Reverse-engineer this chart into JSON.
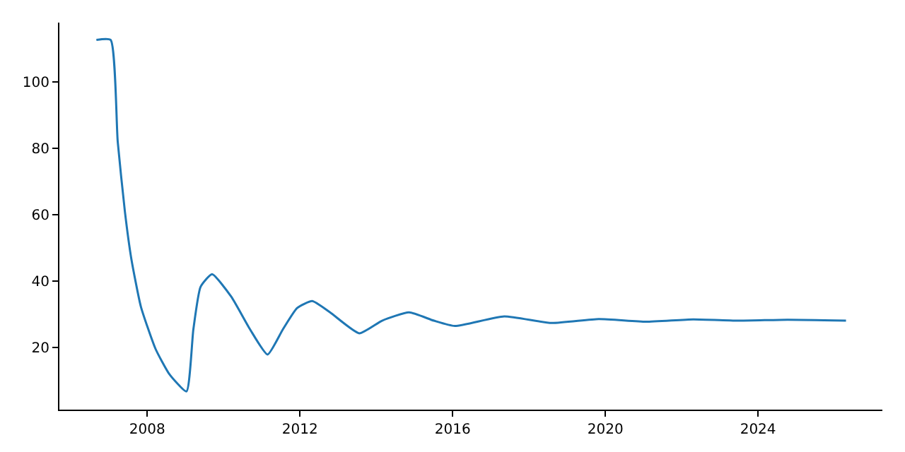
{
  "chart_data": {
    "type": "line",
    "x": [
      "2006-09",
      "2007-01-15",
      "2007-03-24",
      "2007-06",
      "2007-08",
      "2007-11",
      "2008-03-20",
      "2008-08",
      "2009-01-10",
      "2009-03-17",
      "2009-05-25",
      "2009-09-12",
      "2010-03-15",
      "2010-09-10",
      "2011-02-25",
      "2011-07-22",
      "2011-12-05",
      "2012-04-27",
      "2012-10-15",
      "2013-07-22",
      "2014-02-25",
      "2014-11-10",
      "2015-07-05",
      "2016-01-22",
      "2017-05-08",
      "2018-08-04",
      "2019-10-30",
      "2021-01-22",
      "2022-04-20",
      "2023-07-12",
      "2024-10-09",
      "2026-04-22"
    ],
    "series": [
      {
        "color": "#1f77b4",
        "values": [
          112.7,
          112.7,
          82.1,
          60.9,
          46.8,
          32.3,
          19.6,
          11.9,
          6.8,
          25.5,
          38.3,
          42.1,
          35.3,
          25.5,
          17.9,
          25.5,
          31.9,
          34.0,
          30.6,
          24.3,
          28.1,
          30.6,
          28.1,
          26.5,
          29.4,
          27.4,
          28.6,
          27.8,
          28.5,
          28.1,
          28.4,
          28.1
        ]
      }
    ],
    "xlim": [
      "2005-09-12",
      "2027-04-05"
    ],
    "xticks": [
      "2008",
      "2012",
      "2016",
      "2020",
      "2024"
    ],
    "ylim": [
      1.3,
      117.9
    ],
    "yticks": [
      20,
      40,
      60,
      80,
      100
    ],
    "grid": false,
    "marker": "none",
    "line_style": "solid"
  }
}
